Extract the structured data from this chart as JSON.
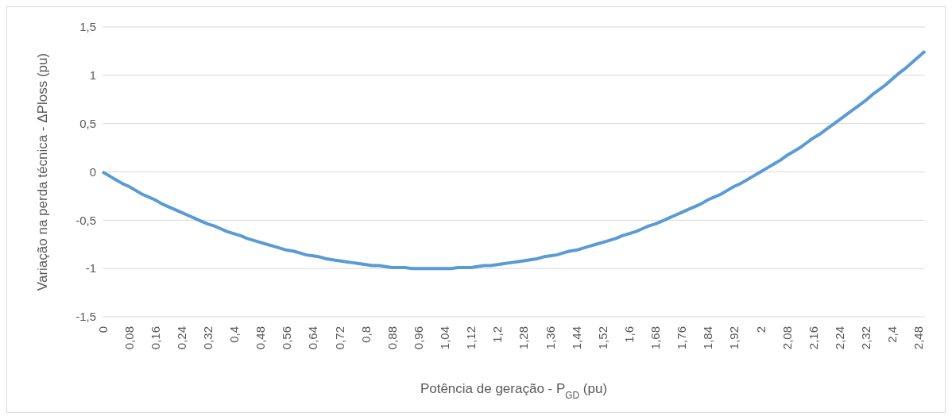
{
  "chart_data": {
    "type": "line",
    "xlabel": "Potência de geração - P$_{GD}$ (pu)",
    "ylabel": "Variação na perda técnica - ΔPloss (pu)",
    "categories": [
      "0",
      null,
      null,
      null,
      "0,08",
      null,
      null,
      null,
      "0,16",
      null,
      null,
      null,
      "0,24",
      null,
      null,
      null,
      "0,32",
      null,
      null,
      null,
      "0,4",
      null,
      null,
      null,
      "0,48",
      null,
      null,
      null,
      "0,56",
      null,
      null,
      null,
      "0,64",
      null,
      null,
      null,
      "0,72",
      null,
      null,
      null,
      "0,8",
      null,
      null,
      null,
      "0,88",
      null,
      null,
      null,
      "0,96",
      null,
      null,
      null,
      "1,04",
      null,
      null,
      null,
      "1,12",
      null,
      null,
      null,
      "1,2",
      null,
      null,
      null,
      "1,28",
      null,
      null,
      null,
      "1,36",
      null,
      null,
      null,
      "1,44",
      null,
      null,
      null,
      "1,52",
      null,
      null,
      null,
      "1,6",
      null,
      null,
      null,
      "1,68",
      null,
      null,
      null,
      "1,76",
      null,
      null,
      null,
      "1,84",
      null,
      null,
      null,
      "1,92",
      null,
      null,
      null,
      "2",
      null,
      null,
      null,
      "2,08",
      null,
      null,
      null,
      "2,16",
      null,
      null,
      null,
      "2,24",
      null,
      null,
      null,
      "2,32",
      null,
      null,
      null,
      "2,4",
      null,
      null,
      null,
      "2,48",
      null
    ],
    "series": [
      {
        "color": "#5b9bd5",
        "values": [
          0,
          -0.04,
          -0.08,
          -0.12,
          -0.15,
          -0.19,
          -0.23,
          -0.26,
          -0.29,
          -0.33,
          -0.36,
          -0.39,
          -0.42,
          -0.45,
          -0.48,
          -0.51,
          -0.54,
          -0.56,
          -0.59,
          -0.62,
          -0.64,
          -0.66,
          -0.69,
          -0.71,
          -0.73,
          -0.75,
          -0.77,
          -0.79,
          -0.81,
          -0.82,
          -0.84,
          -0.86,
          -0.87,
          -0.88,
          -0.9,
          -0.91,
          -0.92,
          -0.93,
          -0.94,
          -0.95,
          -0.96,
          -0.97,
          -0.97,
          -0.98,
          -0.99,
          -0.99,
          -0.99,
          -1,
          -1,
          -1,
          -1,
          -1,
          -1,
          -1,
          -0.99,
          -0.99,
          -0.99,
          -0.98,
          -0.97,
          -0.97,
          -0.96,
          -0.95,
          -0.94,
          -0.93,
          -0.92,
          -0.91,
          -0.9,
          -0.88,
          -0.87,
          -0.86,
          -0.84,
          -0.82,
          -0.81,
          -0.79,
          -0.77,
          -0.75,
          -0.73,
          -0.71,
          -0.69,
          -0.66,
          -0.64,
          -0.62,
          -0.59,
          -0.56,
          -0.54,
          -0.51,
          -0.48,
          -0.45,
          -0.42,
          -0.39,
          -0.36,
          -0.33,
          -0.29,
          -0.26,
          -0.23,
          -0.19,
          -0.15,
          -0.12,
          -0.08,
          -0.04,
          0,
          0.04,
          0.08,
          0.12,
          0.17,
          0.21,
          0.25,
          0.3,
          0.35,
          0.39,
          0.44,
          0.49,
          0.54,
          0.59,
          0.64,
          0.69,
          0.74,
          0.8,
          0.85,
          0.9,
          0.96,
          1.02,
          1.07,
          1.13,
          1.19,
          1.25
        ]
      }
    ],
    "ylim": [
      -1.5,
      1.5
    ],
    "yticks": [
      {
        "value": -1.5,
        "label": "-1,5"
      },
      -1,
      {
        "value": -0.5,
        "label": "-0,5"
      },
      0,
      {
        "value": 0.5,
        "label": "0,5"
      },
      1,
      {
        "value": 1.5,
        "label": "1,5"
      }
    ],
    "grid": "y",
    "legend": false,
    "marker": "none",
    "line_style": "solid"
  }
}
